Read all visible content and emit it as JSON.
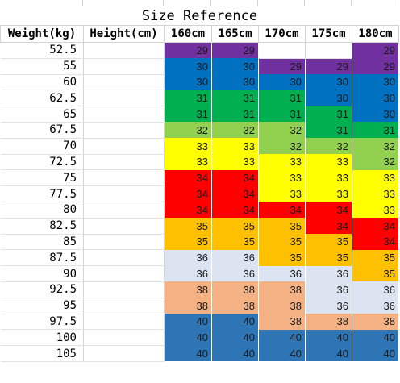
{
  "title": "Size Reference",
  "headers": [
    "Weight(kg)",
    "Height(cm)",
    "160cm",
    "165cm",
    "170cm",
    "175cm",
    "180cm"
  ],
  "rows": [
    {
      "weight": "52.5",
      "sizes": [
        "29",
        "29",
        "",
        "",
        "29"
      ]
    },
    {
      "weight": "55",
      "sizes": [
        "30",
        "30",
        "29",
        "29",
        "29"
      ]
    },
    {
      "weight": "60",
      "sizes": [
        "30",
        "30",
        "30",
        "30",
        "30"
      ]
    },
    {
      "weight": "62.5",
      "sizes": [
        "31",
        "31",
        "31",
        "30",
        "30"
      ]
    },
    {
      "weight": "65",
      "sizes": [
        "31",
        "31",
        "31",
        "31",
        "30"
      ]
    },
    {
      "weight": "67.5",
      "sizes": [
        "32",
        "32",
        "32",
        "31",
        "31"
      ]
    },
    {
      "weight": "70",
      "sizes": [
        "33",
        "33",
        "32",
        "32",
        "32"
      ]
    },
    {
      "weight": "72.5",
      "sizes": [
        "33",
        "33",
        "33",
        "33",
        "32"
      ]
    },
    {
      "weight": "75",
      "sizes": [
        "34",
        "34",
        "33",
        "33",
        "33"
      ]
    },
    {
      "weight": "77.5",
      "sizes": [
        "34",
        "34",
        "33",
        "33",
        "33"
      ]
    },
    {
      "weight": "80",
      "sizes": [
        "34",
        "34",
        "34",
        "34",
        "33"
      ]
    },
    {
      "weight": "82.5",
      "sizes": [
        "35",
        "35",
        "35",
        "34",
        "34"
      ]
    },
    {
      "weight": "85",
      "sizes": [
        "35",
        "35",
        "35",
        "35",
        "34"
      ]
    },
    {
      "weight": "87.5",
      "sizes": [
        "36",
        "36",
        "35",
        "35",
        "35"
      ]
    },
    {
      "weight": "90",
      "sizes": [
        "36",
        "36",
        "36",
        "36",
        "35"
      ]
    },
    {
      "weight": "92.5",
      "sizes": [
        "38",
        "38",
        "38",
        "36",
        "36"
      ]
    },
    {
      "weight": "95",
      "sizes": [
        "38",
        "38",
        "38",
        "36",
        "36"
      ]
    },
    {
      "weight": "97.5",
      "sizes": [
        "40",
        "40",
        "38",
        "38",
        "38"
      ]
    },
    {
      "weight": "100",
      "sizes": [
        "40",
        "40",
        "40",
        "40",
        "40"
      ]
    },
    {
      "weight": "105",
      "sizes": [
        "40",
        "40",
        "40",
        "40",
        "40"
      ]
    }
  ],
  "size_colors": {
    "29": "#7030a0",
    "30": "#0070c0",
    "31": "#00b050",
    "32": "#92d050",
    "33": "#ffff00",
    "34": "#ff0000",
    "35": "#ffc000",
    "36": "#dce3f1",
    "38": "#f4b183",
    "40": "#2e75b6"
  }
}
